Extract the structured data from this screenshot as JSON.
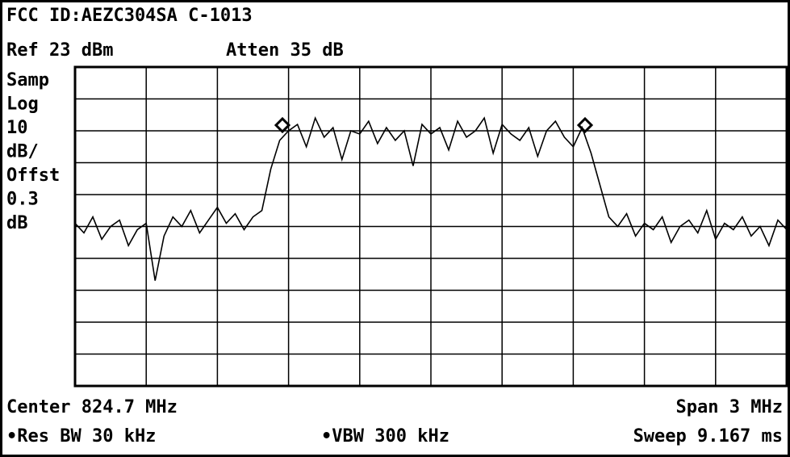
{
  "header": {
    "title": "FCC ID:AEZC304SA C-1013",
    "ref": "Ref 23 dBm",
    "atten": "Atten 35 dB"
  },
  "side_labels": [
    "Samp",
    "Log",
    "10",
    "dB/",
    "Offst",
    "0.3",
    "dB"
  ],
  "footer": {
    "center": "Center 824.7 MHz",
    "span": "Span 3 MHz",
    "rbw": "•Res BW 30 kHz",
    "vbw": "•VBW 300 kHz",
    "sweep": "Sweep 9.167 ms"
  },
  "chart_data": {
    "type": "line",
    "color": "#000000",
    "xlim": [
      823.2,
      826.2
    ],
    "ylim": [
      -77,
      23
    ],
    "x": [
      823.2,
      823.2375,
      823.275,
      823.3125,
      823.35,
      823.3875,
      823.425,
      823.4625,
      823.5,
      823.5375,
      823.575,
      823.6125,
      823.65,
      823.6875,
      823.725,
      823.7625,
      823.8,
      823.8375,
      823.875,
      823.9125,
      823.95,
      823.9875,
      824.025,
      824.0625,
      824.1,
      824.1375,
      824.175,
      824.2125,
      824.25,
      824.2875,
      824.325,
      824.3625,
      824.4,
      824.4375,
      824.475,
      824.5125,
      824.55,
      824.5875,
      824.625,
      824.6625,
      824.7,
      824.7375,
      824.775,
      824.8125,
      824.85,
      824.8875,
      824.925,
      824.9625,
      825.0,
      825.0375,
      825.075,
      825.1125,
      825.15,
      825.1875,
      825.225,
      825.2625,
      825.3,
      825.3375,
      825.375,
      825.4125,
      825.45,
      825.4875,
      825.525,
      825.5625,
      825.6,
      825.6375,
      825.675,
      825.7125,
      825.75,
      825.7875,
      825.825,
      825.8625,
      825.9,
      825.9375,
      825.975,
      826.0125,
      826.05,
      826.0875,
      826.125,
      826.1625,
      826.2
    ],
    "series": [
      {
        "values": [
          -26,
          -29,
          -24,
          -31,
          -27,
          -25,
          -33,
          -28,
          -26,
          -44,
          -30,
          -24,
          -27,
          -22,
          -29,
          -25,
          -21,
          -26,
          -23,
          -28,
          -24,
          -22,
          -9,
          0,
          3,
          5,
          -2,
          7,
          1,
          4,
          -6,
          3,
          2,
          6,
          -1,
          4,
          0,
          3,
          -8,
          5,
          2,
          4,
          -3,
          6,
          1,
          3,
          7,
          -4,
          5,
          2,
          0,
          4,
          -5,
          3,
          6,
          1,
          -2,
          4,
          -4,
          -14,
          -24,
          -27,
          -23,
          -30,
          -26,
          -28,
          -24,
          -32,
          -27,
          -25,
          -29,
          -22,
          -31,
          -26,
          -28,
          -24,
          -30,
          -27,
          -33,
          -25,
          -28
        ]
      }
    ]
  }
}
